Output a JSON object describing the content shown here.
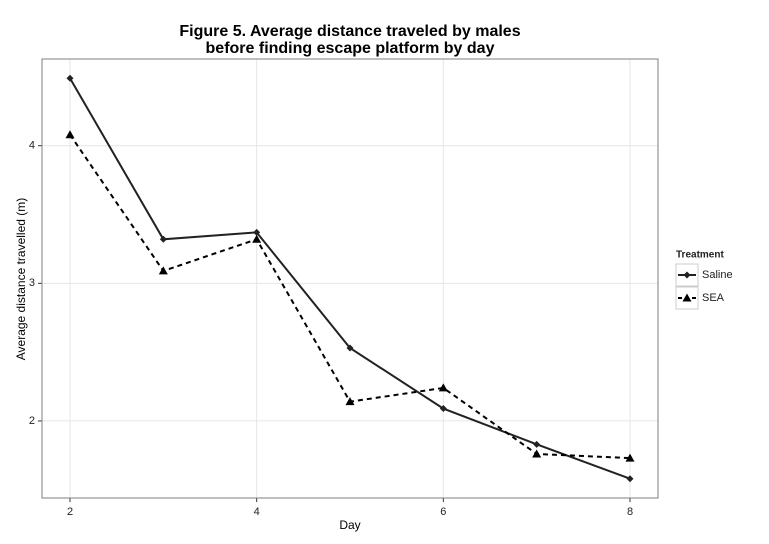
{
  "chart_data": {
    "type": "line",
    "title": [
      "Figure 5. Average distance traveled by males",
      "before finding escape platform by day"
    ],
    "x_label": "Day",
    "y_label": "Average distance travelled (m)",
    "x": [
      2,
      3,
      4,
      5,
      6,
      7,
      8
    ],
    "series": [
      {
        "name": "Saline",
        "color": "#222222",
        "linestyle": "solid",
        "marker": "diamond",
        "values": [
          4.49,
          3.32,
          3.37,
          2.53,
          2.09,
          1.83,
          1.58
        ]
      },
      {
        "name": "SEA",
        "color": "#000000",
        "linestyle": "dashed",
        "marker": "triangle",
        "values": [
          4.08,
          3.09,
          3.32,
          2.14,
          2.24,
          1.76,
          1.73
        ]
      }
    ],
    "xlim": [
      1.7,
      8.3
    ],
    "xticks": [
      2,
      4,
      6,
      8
    ],
    "ylim": [
      1.44,
      4.63
    ],
    "yticks": [
      2,
      3,
      4
    ],
    "grid": true,
    "legend_title": "Treatment",
    "legend_position": "right"
  }
}
